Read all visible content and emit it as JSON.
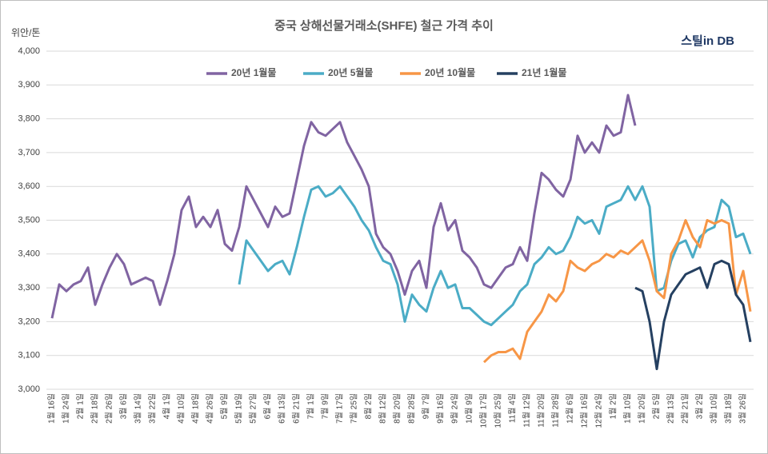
{
  "chart_data": {
    "type": "line",
    "title": "중국 상해선물거래소(SHFE) 철근 가격 추이",
    "y_label": "위안/톤",
    "logo": "스틸in DB",
    "categories": [
      "1월 16일",
      null,
      "1월 24일",
      null,
      "2월 1일",
      null,
      "2월 18일",
      null,
      "2월 26일",
      null,
      "3월 6일",
      null,
      "3월 14일",
      null,
      "3월 22일",
      null,
      "4월 1일",
      null,
      "4월 10일",
      null,
      "4월 18일",
      null,
      "4월 26일",
      null,
      "5월 9일",
      null,
      "5월 19일",
      null,
      "5월 27일",
      null,
      "6월 4일",
      null,
      "6월 13일",
      null,
      "6월 21일",
      null,
      "7월 1일",
      null,
      "7월 9일",
      null,
      "7월 17일",
      null,
      "7월 25일",
      null,
      "8월 2일",
      null,
      "8월 12일",
      null,
      "8월 20일",
      null,
      "8월 28일",
      null,
      "9월 7일",
      null,
      "9월 16일",
      null,
      "9월 24일",
      null,
      "10월 9일",
      null,
      "10월 17일",
      null,
      "10월 25일",
      null,
      "11월 4일",
      null,
      "11월 12일",
      null,
      "11월 20일",
      null,
      "11월 28일",
      null,
      "12월 6일",
      null,
      "12월 16일",
      null,
      "12월 24일",
      null,
      "1월 2일",
      null,
      "1월 10일",
      null,
      "1월 20일",
      null,
      "2월 5일",
      null,
      "2월 13일",
      null,
      "2월 21일",
      null,
      "3월 2일",
      null,
      "3월 10일",
      null,
      "3월 18일",
      null,
      "3월 26일",
      null
    ],
    "series": [
      {
        "name": "20년 1월물",
        "color": "#8064a2",
        "values": [
          3210,
          3310,
          3290,
          3310,
          3320,
          3360,
          3250,
          3310,
          3360,
          3400,
          3370,
          3310,
          3320,
          3330,
          3320,
          3250,
          3320,
          3400,
          3530,
          3570,
          3480,
          3510,
          3480,
          3530,
          3430,
          3410,
          3480,
          3600,
          3560,
          3520,
          3480,
          3540,
          3510,
          3520,
          3620,
          3720,
          3790,
          3760,
          3750,
          3770,
          3790,
          3730,
          3690,
          3650,
          3600,
          3460,
          3420,
          3400,
          3350,
          3280,
          3350,
          3380,
          3300,
          3480,
          3550,
          3470,
          3500,
          3410,
          3390,
          3360,
          3310,
          3300,
          3330,
          3360,
          3370,
          3420,
          3380,
          3520,
          3640,
          3620,
          3590,
          3570,
          3620,
          3750,
          3700,
          3730,
          3700,
          3780,
          3750,
          3760,
          3870,
          3780,
          null,
          null,
          null,
          null,
          null,
          null,
          null,
          null,
          null,
          null,
          null,
          null,
          null,
          null,
          null,
          null
        ]
      },
      {
        "name": "20년 5월물",
        "color": "#4bacc6",
        "values": [
          null,
          null,
          null,
          null,
          null,
          null,
          null,
          null,
          null,
          null,
          null,
          null,
          null,
          null,
          null,
          null,
          null,
          null,
          null,
          null,
          null,
          null,
          null,
          null,
          null,
          null,
          3310,
          3440,
          3410,
          3380,
          3350,
          3370,
          3380,
          3340,
          3420,
          3510,
          3590,
          3600,
          3570,
          3580,
          3600,
          3570,
          3540,
          3500,
          3470,
          3420,
          3380,
          3370,
          3310,
          3200,
          3280,
          3250,
          3230,
          3300,
          3350,
          3300,
          3310,
          3240,
          3240,
          3220,
          3200,
          3190,
          3210,
          3230,
          3250,
          3290,
          3310,
          3370,
          3390,
          3420,
          3400,
          3410,
          3450,
          3510,
          3490,
          3500,
          3460,
          3540,
          3550,
          3560,
          3600,
          3560,
          3600,
          3540,
          3290,
          3300,
          3380,
          3430,
          3440,
          3390,
          3450,
          3470,
          3480,
          3560,
          3540,
          3450,
          3460,
          3400
        ]
      },
      {
        "name": "20년 10월물",
        "color": "#f79646",
        "values": [
          null,
          null,
          null,
          null,
          null,
          null,
          null,
          null,
          null,
          null,
          null,
          null,
          null,
          null,
          null,
          null,
          null,
          null,
          null,
          null,
          null,
          null,
          null,
          null,
          null,
          null,
          null,
          null,
          null,
          null,
          null,
          null,
          null,
          null,
          null,
          null,
          null,
          null,
          null,
          null,
          null,
          null,
          null,
          null,
          null,
          null,
          null,
          null,
          null,
          null,
          null,
          null,
          null,
          null,
          null,
          null,
          null,
          null,
          null,
          null,
          3080,
          3100,
          3110,
          3110,
          3120,
          3090,
          3170,
          3200,
          3230,
          3280,
          3260,
          3290,
          3380,
          3360,
          3350,
          3370,
          3380,
          3400,
          3390,
          3410,
          3400,
          3420,
          3440,
          3380,
          3290,
          3270,
          3400,
          3440,
          3500,
          3450,
          3420,
          3500,
          3490,
          3500,
          3490,
          3280,
          3350,
          3230
        ]
      },
      {
        "name": "21년 1월물",
        "color": "#254061",
        "values": [
          null,
          null,
          null,
          null,
          null,
          null,
          null,
          null,
          null,
          null,
          null,
          null,
          null,
          null,
          null,
          null,
          null,
          null,
          null,
          null,
          null,
          null,
          null,
          null,
          null,
          null,
          null,
          null,
          null,
          null,
          null,
          null,
          null,
          null,
          null,
          null,
          null,
          null,
          null,
          null,
          null,
          null,
          null,
          null,
          null,
          null,
          null,
          null,
          null,
          null,
          null,
          null,
          null,
          null,
          null,
          null,
          null,
          null,
          null,
          null,
          null,
          null,
          null,
          null,
          null,
          null,
          null,
          null,
          null,
          null,
          null,
          null,
          null,
          null,
          null,
          null,
          null,
          null,
          null,
          null,
          null,
          3300,
          3290,
          3200,
          3060,
          3200,
          3280,
          3310,
          3340,
          3350,
          3360,
          3300,
          3370,
          3380,
          3370,
          3280,
          3250,
          3140
        ]
      }
    ],
    "ylim": [
      3000,
      4000
    ],
    "yticks": [
      {
        "value": 3000,
        "label": "3,000"
      },
      {
        "value": 3100,
        "label": "3,100"
      },
      {
        "value": 3200,
        "label": "3,200"
      },
      {
        "value": 3300,
        "label": "3,300"
      },
      {
        "value": 3400,
        "label": "3,400"
      },
      {
        "value": 3500,
        "label": "3,500"
      },
      {
        "value": 3600,
        "label": "3,600"
      },
      {
        "value": 3700,
        "label": "3,700"
      },
      {
        "value": 3800,
        "label": "3,800"
      },
      {
        "value": 3900,
        "label": "3,900"
      },
      {
        "value": 4000,
        "label": "4,000"
      }
    ],
    "grid": true,
    "legend": "top"
  }
}
